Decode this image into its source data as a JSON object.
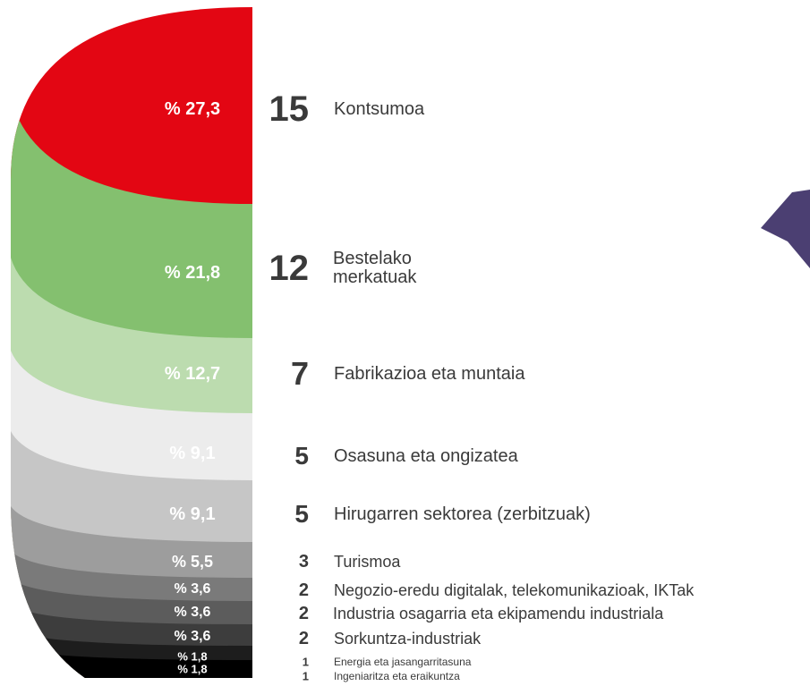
{
  "items": [
    {
      "percent": "% 27,3",
      "count": 15,
      "label": "Kontsumoa"
    },
    {
      "percent": "% 21,8",
      "count": 12,
      "label": "Bestelako merkatuak"
    },
    {
      "percent": "% 12,7",
      "count": 7,
      "label": "Fabrikazioa eta muntaia"
    },
    {
      "percent": "% 9,1",
      "count": 5,
      "label": "Osasuna eta ongizatea"
    },
    {
      "percent": "% 9,1",
      "count": 5,
      "label": "Hirugarren sektorea (zerbitzuak)"
    },
    {
      "percent": "% 5,5",
      "count": 3,
      "label": "Turismoa"
    },
    {
      "percent": "% 3,6",
      "count": 2,
      "label": "Negozio-eredu digitalak, telekomunikazioak, IKTak"
    },
    {
      "percent": "% 3,6",
      "count": 2,
      "label": "Industria osagarria eta ekipamendu industriala"
    },
    {
      "percent": "% 3,6",
      "count": 2,
      "label": "Sorkuntza-industriak"
    },
    {
      "percent": "% 1,8",
      "count": 1,
      "label": "Energia eta jasangarritasuna"
    },
    {
      "percent": "% 1,8",
      "count": 1,
      "label": "Ingeniaritza eta eraikuntza"
    }
  ]
}
